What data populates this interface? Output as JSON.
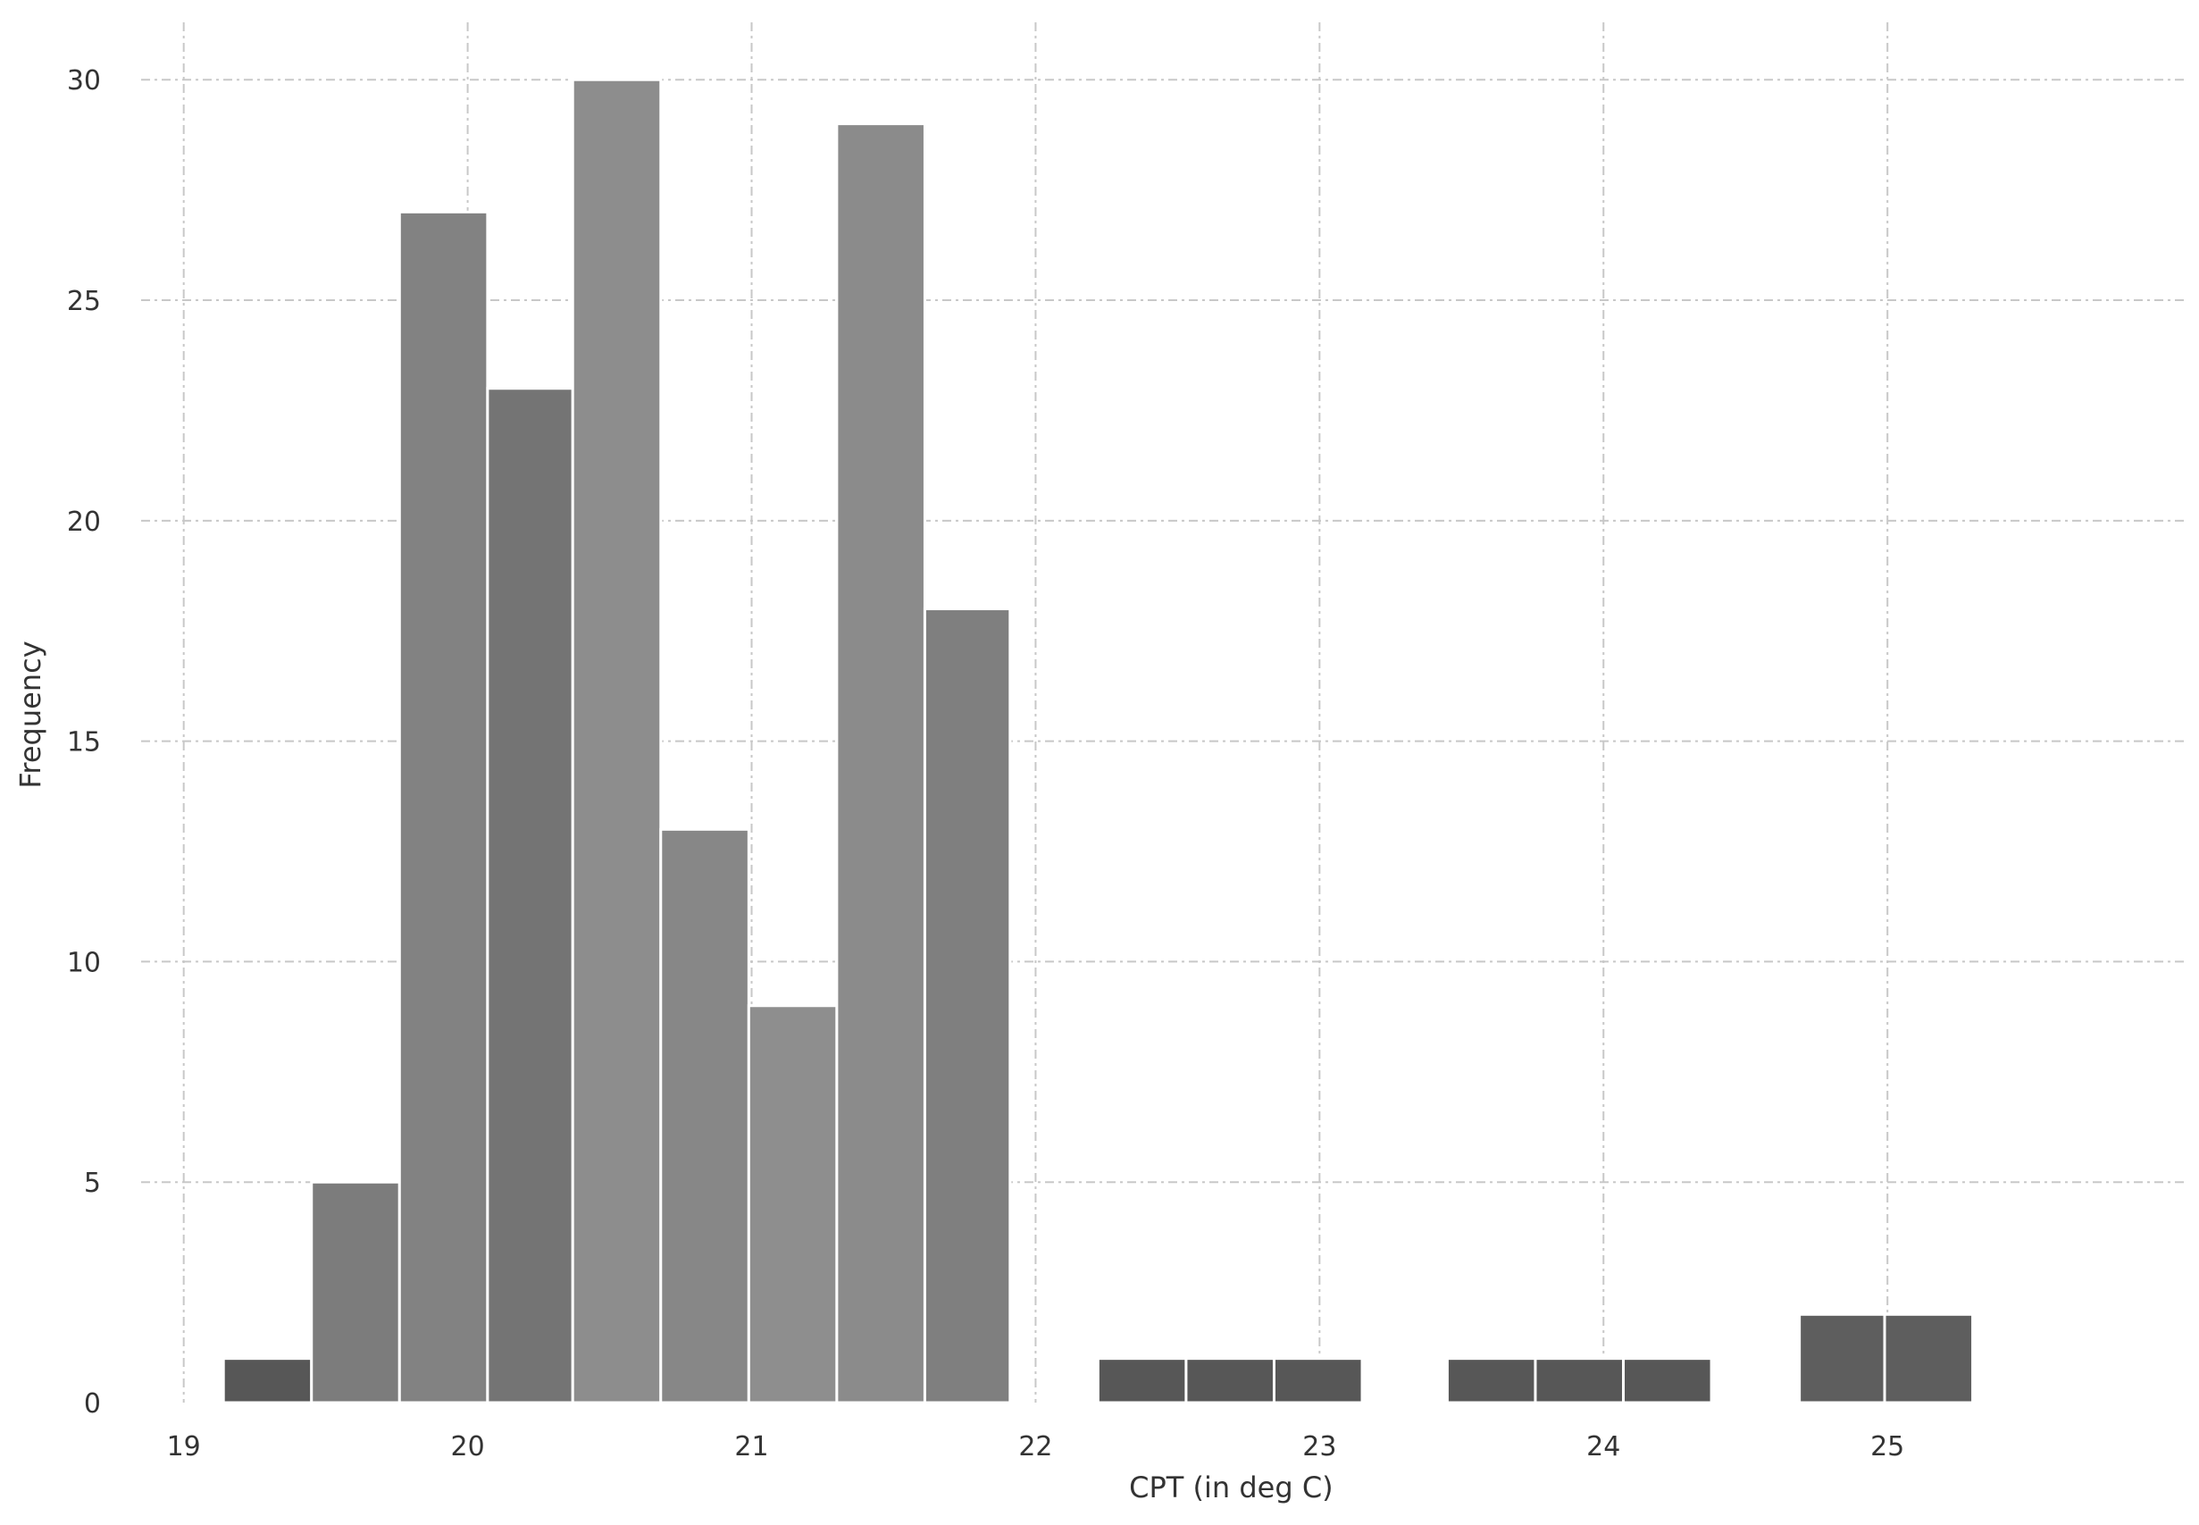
{
  "chart_data": {
    "type": "bar",
    "title": "",
    "xlabel": "CPT (in deg C)",
    "ylabel": "Frequency",
    "xlim": [
      18.85,
      26.05
    ],
    "ylim": [
      0,
      31.2
    ],
    "xticks": [
      "19",
      "20",
      "21",
      "22",
      "23",
      "24",
      "25"
    ],
    "yticks": [
      "0",
      "5",
      "10",
      "15",
      "20",
      "25",
      "30"
    ],
    "grid": true,
    "bin_width": 0.3083,
    "bins": [
      {
        "x0": 19.14,
        "x1": 19.45,
        "value": 1,
        "color": "#575757"
      },
      {
        "x0": 19.45,
        "x1": 19.76,
        "value": 5,
        "color": "#7c7c7c"
      },
      {
        "x0": 19.76,
        "x1": 20.07,
        "value": 27,
        "color": "#828282"
      },
      {
        "x0": 20.07,
        "x1": 20.37,
        "value": 23,
        "color": "#747474"
      },
      {
        "x0": 20.37,
        "x1": 20.68,
        "value": 30,
        "color": "#8d8d8d"
      },
      {
        "x0": 20.68,
        "x1": 20.99,
        "value": 13,
        "color": "#878787"
      },
      {
        "x0": 20.99,
        "x1": 21.3,
        "value": 9,
        "color": "#8e8e8e"
      },
      {
        "x0": 21.3,
        "x1": 21.61,
        "value": 29,
        "color": "#8b8b8b"
      },
      {
        "x0": 21.61,
        "x1": 21.91,
        "value": 18,
        "color": "#7f7f7f"
      },
      {
        "x0": 22.22,
        "x1": 22.53,
        "value": 1,
        "color": "#575757"
      },
      {
        "x0": 22.53,
        "x1": 22.84,
        "value": 1,
        "color": "#575757"
      },
      {
        "x0": 22.84,
        "x1": 23.15,
        "value": 1,
        "color": "#575757"
      },
      {
        "x0": 23.45,
        "x1": 23.76,
        "value": 1,
        "color": "#575757"
      },
      {
        "x0": 23.76,
        "x1": 24.07,
        "value": 1,
        "color": "#575757"
      },
      {
        "x0": 24.07,
        "x1": 24.38,
        "value": 1,
        "color": "#575757"
      },
      {
        "x0": 24.69,
        "x1": 24.99,
        "value": 2,
        "color": "#5e5e5e"
      },
      {
        "x0": 24.99,
        "x1": 25.3,
        "value": 2,
        "color": "#5e5e5e"
      }
    ]
  }
}
